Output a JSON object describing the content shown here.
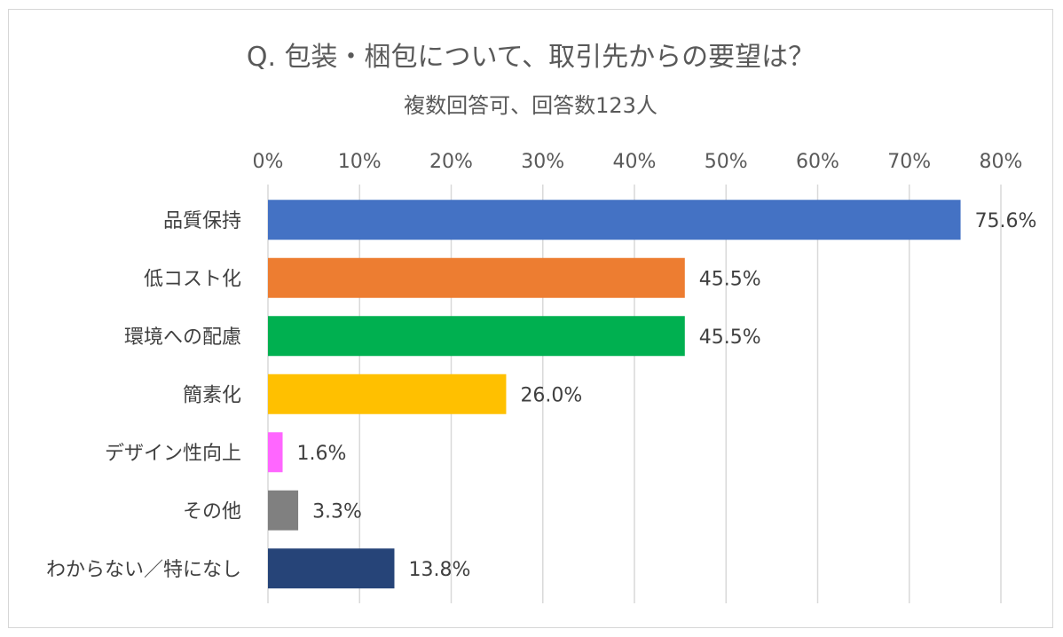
{
  "chart_data": {
    "type": "bar",
    "orientation": "horizontal",
    "title": "Q.  包装・梱包について、取引先からの要望は？",
    "subtitle": "複数回答可、回答数123人",
    "categories": [
      "品質保持",
      "低コスト化",
      "環境への配慮",
      "簡素化",
      "デザイン性向上",
      "その他",
      "わからない／特になし"
    ],
    "values": [
      75.6,
      45.5,
      45.5,
      26.0,
      1.6,
      3.3,
      13.8
    ],
    "value_labels": [
      "75.6%",
      "45.5%",
      "45.5%",
      "26.0%",
      "1.6%",
      "3.3%",
      "13.8%"
    ],
    "colors": [
      "#4472C4",
      "#ED7D31",
      "#00B050",
      "#FFC000",
      "#FF66FF",
      "#808080",
      "#264478"
    ],
    "xlim": [
      0,
      80
    ],
    "ticks": [
      0,
      10,
      20,
      30,
      40,
      50,
      60,
      70,
      80
    ],
    "tick_labels": [
      "0%",
      "10%",
      "20%",
      "30%",
      "40%",
      "50%",
      "60%",
      "70%",
      "80%"
    ],
    "axis_position": "top",
    "grid": true,
    "legend": "none"
  }
}
